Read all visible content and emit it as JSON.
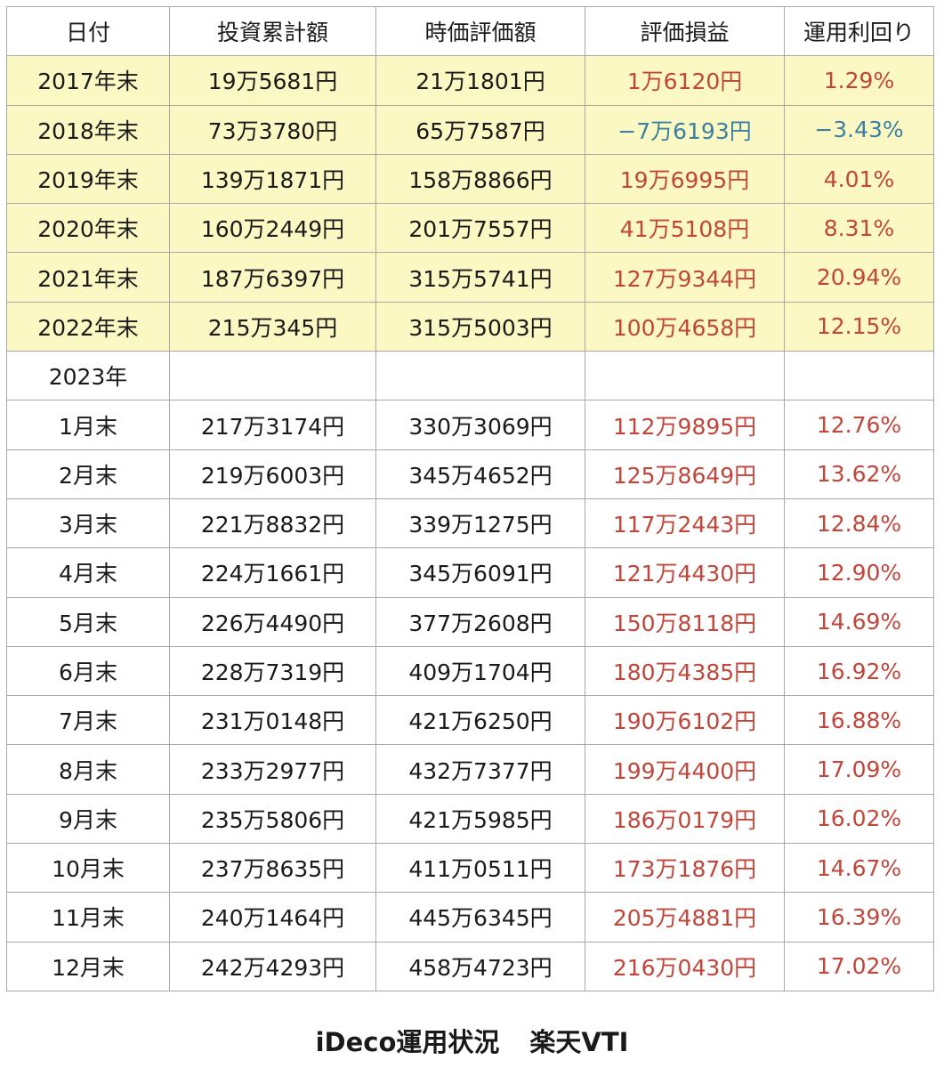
{
  "colors": {
    "positive_text": "#c0463a",
    "negative_text": "#3b7fa3",
    "year_end_fill": "#fbf8c4",
    "grid_line": "#a8a8a8"
  },
  "table": {
    "headers": [
      "日付",
      "投資累計額",
      "時価評価額",
      "評価損益",
      "運用利回り"
    ],
    "rows": [
      {
        "date": "2017年末",
        "invested": "19万5681円",
        "market_value": "21万1801円",
        "gain": "1万6120円",
        "yield": "1.29%",
        "kind": "year-end",
        "sign": "positive"
      },
      {
        "date": "2018年末",
        "invested": "73万3780円",
        "market_value": "65万7587円",
        "gain": "−7万6193円",
        "yield": "−3.43%",
        "kind": "year-end",
        "sign": "negative"
      },
      {
        "date": "2019年末",
        "invested": "139万1871円",
        "market_value": "158万8866円",
        "gain": "19万6995円",
        "yield": "4.01%",
        "kind": "year-end",
        "sign": "positive"
      },
      {
        "date": "2020年末",
        "invested": "160万2449円",
        "market_value": "201万7557円",
        "gain": "41万5108円",
        "yield": "8.31%",
        "kind": "year-end",
        "sign": "positive"
      },
      {
        "date": "2021年末",
        "invested": "187万6397円",
        "market_value": "315万5741円",
        "gain": "127万9344円",
        "yield": "20.94%",
        "kind": "year-end",
        "sign": "positive"
      },
      {
        "date": "2022年末",
        "invested": "215万345円",
        "market_value": "315万5003円",
        "gain": "100万4658円",
        "yield": "12.15%",
        "kind": "year-end",
        "sign": "positive"
      },
      {
        "date": "2023年",
        "invested": "",
        "market_value": "",
        "gain": "",
        "yield": "",
        "kind": "section",
        "sign": "none"
      },
      {
        "date": "1月末",
        "invested": "217万3174円",
        "market_value": "330万3069円",
        "gain": "112万9895円",
        "yield": "12.76%",
        "kind": "month",
        "sign": "positive"
      },
      {
        "date": "2月末",
        "invested": "219万6003円",
        "market_value": "345万4652円",
        "gain": "125万8649円",
        "yield": "13.62%",
        "kind": "month",
        "sign": "positive"
      },
      {
        "date": "3月末",
        "invested": "221万8832円",
        "market_value": "339万1275円",
        "gain": "117万2443円",
        "yield": "12.84%",
        "kind": "month",
        "sign": "positive"
      },
      {
        "date": "4月末",
        "invested": "224万1661円",
        "market_value": "345万6091円",
        "gain": "121万4430円",
        "yield": "12.90%",
        "kind": "month",
        "sign": "positive"
      },
      {
        "date": "5月末",
        "invested": "226万4490円",
        "market_value": "377万2608円",
        "gain": "150万8118円",
        "yield": "14.69%",
        "kind": "month",
        "sign": "positive"
      },
      {
        "date": "6月末",
        "invested": "228万7319円",
        "market_value": "409万1704円",
        "gain": "180万4385円",
        "yield": "16.92%",
        "kind": "month",
        "sign": "positive"
      },
      {
        "date": "7月末",
        "invested": "231万0148円",
        "market_value": "421万6250円",
        "gain": "190万6102円",
        "yield": "16.88%",
        "kind": "month",
        "sign": "positive"
      },
      {
        "date": "8月末",
        "invested": "233万2977円",
        "market_value": "432万7377円",
        "gain": "199万4400円",
        "yield": "17.09%",
        "kind": "month",
        "sign": "positive"
      },
      {
        "date": "9月末",
        "invested": "235万5806円",
        "market_value": "421万5985円",
        "gain": "186万0179円",
        "yield": "16.02%",
        "kind": "month",
        "sign": "positive"
      },
      {
        "date": "10月末",
        "invested": "237万8635円",
        "market_value": "411万0511円",
        "gain": "173万1876円",
        "yield": "14.67%",
        "kind": "month",
        "sign": "positive"
      },
      {
        "date": "11月末",
        "invested": "240万1464円",
        "market_value": "445万6345円",
        "gain": "205万4881円",
        "yield": "16.39%",
        "kind": "month",
        "sign": "positive"
      },
      {
        "date": "12月末",
        "invested": "242万4293円",
        "market_value": "458万4723円",
        "gain": "216万0430円",
        "yield": "17.02%",
        "kind": "month",
        "sign": "positive"
      }
    ]
  },
  "caption": {
    "left": "iDeco運用状況",
    "right": "楽天VTI"
  }
}
